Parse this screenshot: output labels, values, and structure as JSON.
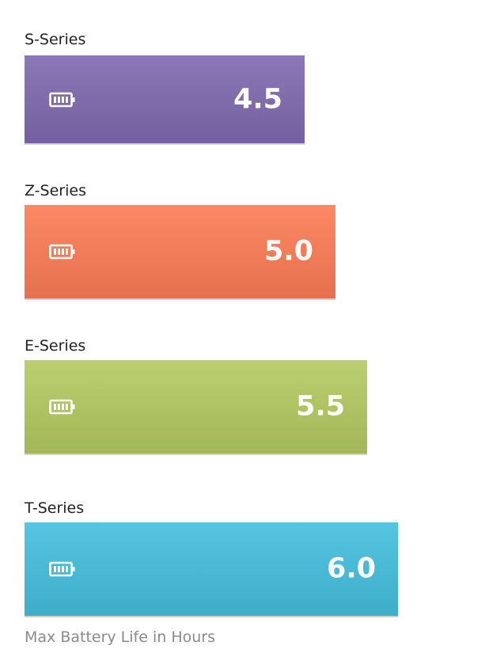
{
  "chart_data": {
    "type": "bar",
    "orientation": "horizontal",
    "categories": [
      "S-Series",
      "Z-Series",
      "E-Series",
      "T-Series"
    ],
    "values": [
      4.5,
      5.0,
      5.5,
      6.0
    ],
    "value_labels": [
      "4.5",
      "5.0",
      "5.5",
      "6.0"
    ],
    "colors": [
      "#7f6aa9",
      "#ee7a57",
      "#adc062",
      "#47b7d3"
    ],
    "caption": "Max Battery Life in Hours",
    "icon": "battery-icon",
    "grid": false,
    "legend": "none"
  }
}
